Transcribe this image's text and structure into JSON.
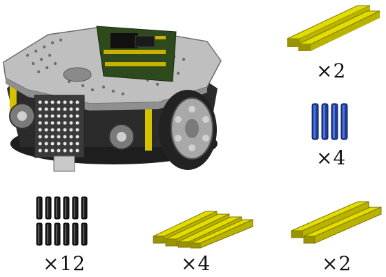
{
  "parts": [
    {
      "id": "robot-car",
      "icon": "robot-car-icon"
    },
    {
      "id": "beam-top-right",
      "icon": "yellow-beam-icon",
      "quantity": "×2"
    },
    {
      "id": "blue-pins",
      "icon": "blue-pin-icon",
      "quantity": "×4"
    },
    {
      "id": "black-pins",
      "icon": "black-pin-icon",
      "quantity": "×12"
    },
    {
      "id": "beam-bottom-middle",
      "icon": "yellow-beam-icon",
      "quantity": "×4"
    },
    {
      "id": "beam-bottom-right",
      "icon": "yellow-beam-icon",
      "quantity": "×2"
    }
  ],
  "colors": {
    "beam": "#d8d400",
    "beam_dark": "#8a8600",
    "blue_pin": "#1b3a9a",
    "black_pin": "#1a1a1a",
    "chassis": "#bcbcbc",
    "wheel": "#2a2a2a"
  }
}
